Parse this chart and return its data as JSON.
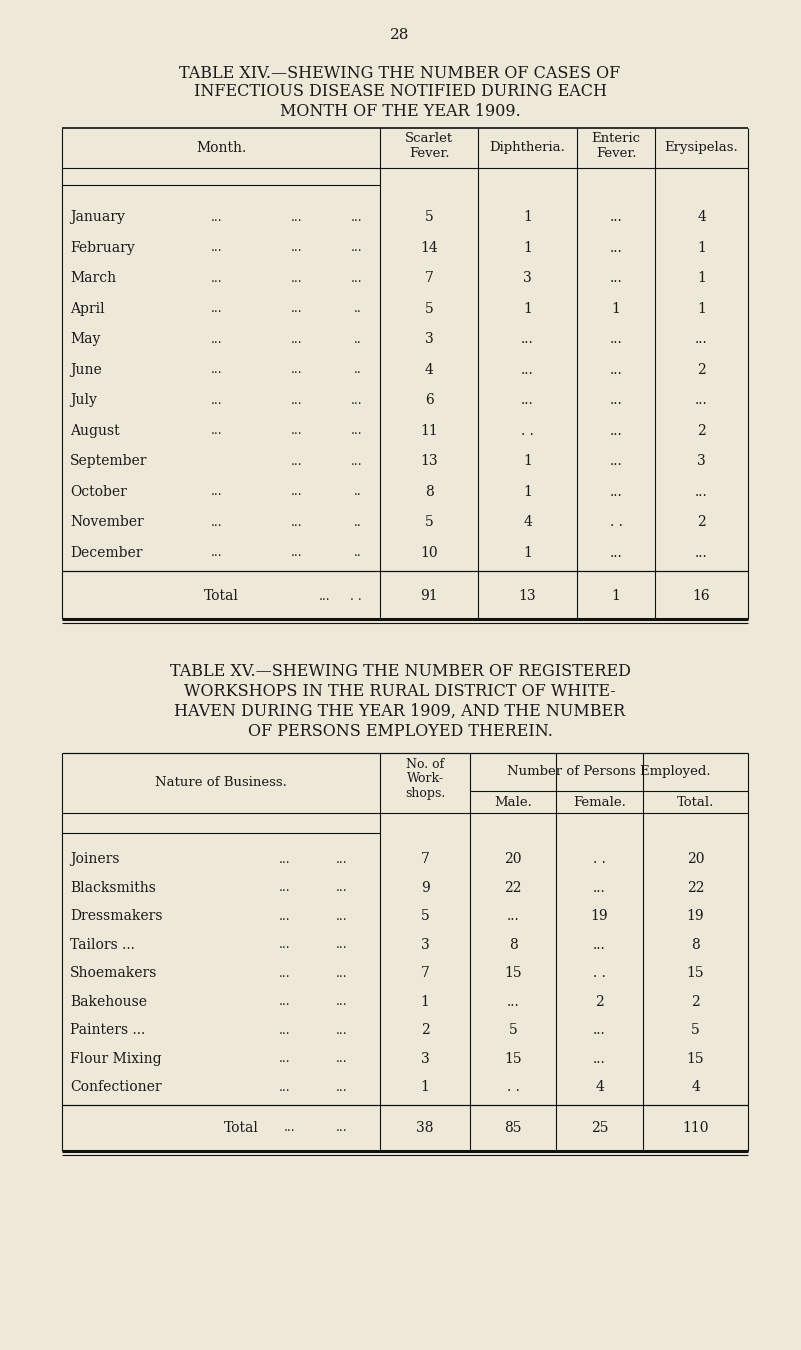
{
  "page_number": "28",
  "bg_color": "#ede8d8",
  "text_color": "#1a1a1a",
  "table14_title_line1": "TABLE XIV.—SHEWING THE NUMBER OF CASES OF",
  "table14_title_line2": "INFECTIOUS DISEASE NOTIFIED DURING EACH",
  "table14_title_line3": "MONTH OF THE YEAR 1909.",
  "table14_months": [
    "January",
    "February",
    "March",
    "April",
    "May",
    "June",
    "July",
    "August",
    "September",
    "October",
    "November",
    "December"
  ],
  "table14_month_d1": [
    "...",
    "...",
    "...",
    "...",
    "...",
    "...",
    "...",
    "...",
    "",
    "...",
    "...",
    "..."
  ],
  "table14_month_d2": [
    "...",
    "...",
    "...",
    "..",
    "..",
    "..",
    "...",
    "...",
    "...",
    "..",
    "..",
    ".."
  ],
  "table14_scarlet": [
    "5",
    "14",
    "7",
    "5",
    "3",
    "4",
    "6",
    "11",
    "13",
    "8",
    "5",
    "10"
  ],
  "table14_diphtheria": [
    "1",
    "1",
    "3",
    "1",
    "...",
    "...",
    "...",
    ". .",
    "1",
    "1",
    "4",
    "1"
  ],
  "table14_enteric": [
    "...",
    "...",
    "...",
    "1",
    "...",
    "...",
    "...",
    "...",
    "...",
    "...",
    ". .",
    "..."
  ],
  "table14_erysipelas": [
    "4",
    "1",
    "1",
    "1",
    "...",
    "2",
    "...",
    "2",
    "3",
    "...",
    "2",
    "..."
  ],
  "table14_total_scarlet": "91",
  "table14_total_diphtheria": "13",
  "table14_total_enteric": "1",
  "table14_total_erysipelas": "16",
  "table15_title_line1": "TABLE XV.—SHEWING THE NUMBER OF REGISTERED",
  "table15_title_line2": "WORKSHOPS IN THE RURAL DISTRICT OF WHITE-",
  "table15_title_line3": "HAVEN DURING THE YEAR 1909, AND THE NUMBER",
  "table15_title_line4": "OF PERSONS EMPLOYED THEREIN.",
  "table15_businesses": [
    "Joiners",
    "Blacksmiths",
    "Dressmakers",
    "Tailors ...",
    "Shoemakers",
    "Bakehouse",
    "Painters ...",
    "Flour Mixing",
    "Confectioner"
  ],
  "table15_shops": [
    "7",
    "9",
    "5",
    "3",
    "7",
    "1",
    "2",
    "3",
    "1"
  ],
  "table15_male": [
    "20",
    "22",
    "...",
    "8",
    "15",
    "...",
    "5",
    "15",
    ". ."
  ],
  "table15_female": [
    ". .",
    "...",
    "19",
    "...",
    ". .",
    "2",
    "...",
    "...",
    "4"
  ],
  "table15_total": [
    "20",
    "22",
    "19",
    "8",
    "15",
    "2",
    "5",
    "15",
    "4"
  ],
  "table15_total_shops": "38",
  "table15_total_male": "85",
  "table15_total_female": "25",
  "table15_total_total": "110"
}
